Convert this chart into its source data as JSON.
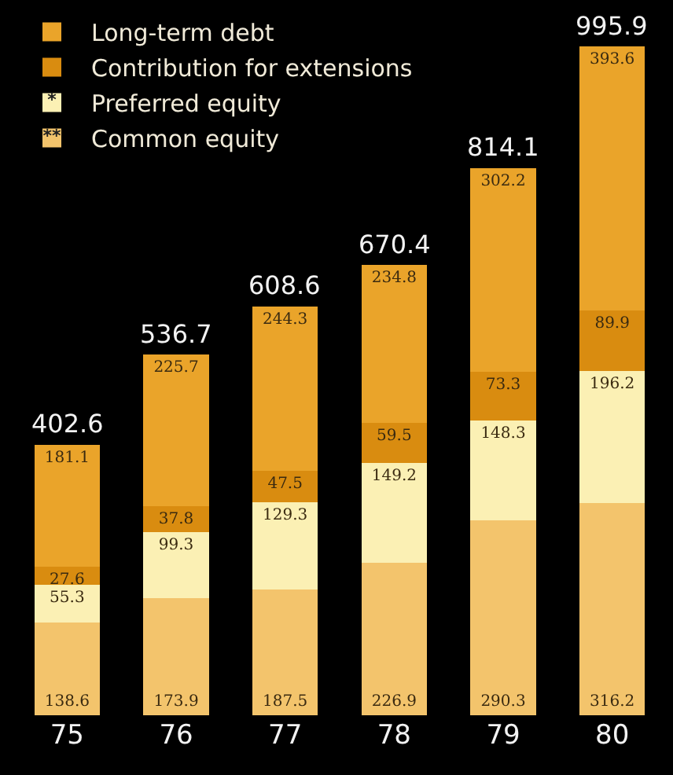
{
  "chart_data": {
    "type": "bar",
    "stacked": true,
    "categories": [
      "75",
      "76",
      "77",
      "78",
      "79",
      "80"
    ],
    "series": [
      {
        "name": "Common equity",
        "color": "#f3c46c",
        "values": [
          138.6,
          173.9,
          187.5,
          226.9,
          290.3,
          316.2
        ]
      },
      {
        "name": "Preferred equity",
        "color": "#fbf0b4",
        "values": [
          55.3,
          99.3,
          129.3,
          149.2,
          148.3,
          196.2
        ]
      },
      {
        "name": "Contribution for extensions",
        "color": "#d98c10",
        "values": [
          27.6,
          37.8,
          47.5,
          59.5,
          73.3,
          89.9
        ]
      },
      {
        "name": "Long-term debt",
        "color": "#eaa42a",
        "values": [
          181.1,
          225.7,
          244.3,
          234.8,
          302.2,
          393.6
        ]
      }
    ],
    "annotations": [
      "**",
      "*"
    ],
    "data_labels": true,
    "totals": [
      "402.6",
      "536.7",
      "608.6",
      "670.4",
      "814.1",
      "995.9"
    ],
    "legend": "top left",
    "tick_labels": "x"
  }
}
